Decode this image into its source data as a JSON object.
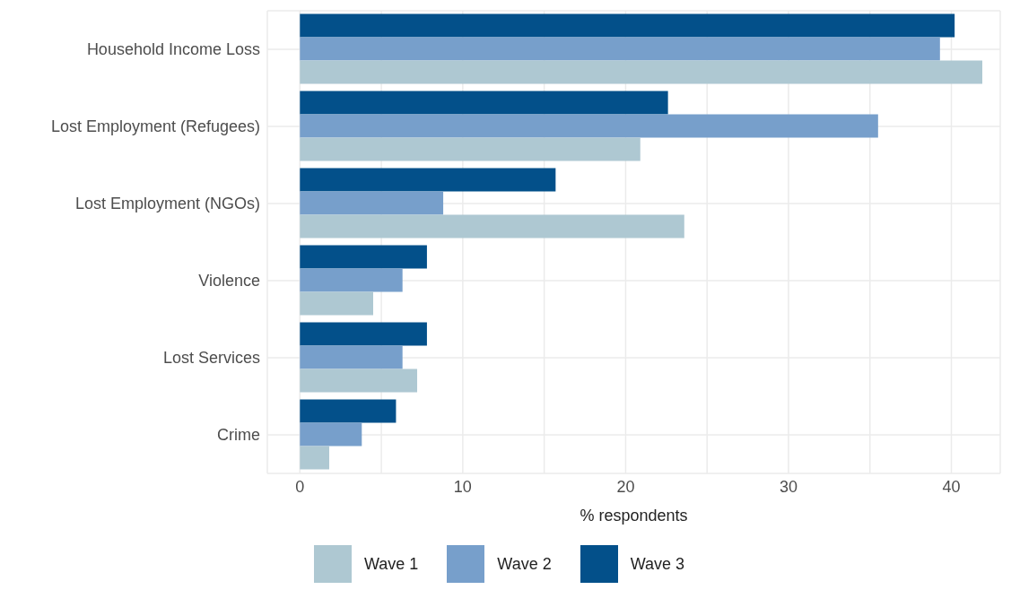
{
  "chart_data": {
    "type": "bar",
    "orientation": "horizontal",
    "xlabel": "% respondents",
    "categories": [
      "Household Income Loss",
      "Lost Employment (Refugees)",
      "Lost Employment (NGOs)",
      "Violence",
      "Lost Services",
      "Crime"
    ],
    "series": [
      {
        "name": "Wave 1",
        "color": "#aec8d2",
        "values": [
          41.9,
          20.9,
          23.6,
          4.5,
          7.2,
          1.8
        ]
      },
      {
        "name": "Wave 2",
        "color": "#779fcb",
        "values": [
          39.3,
          35.5,
          8.8,
          6.3,
          6.3,
          3.8
        ]
      },
      {
        "name": "Wave 3",
        "color": "#03508a",
        "values": [
          40.2,
          22.6,
          15.7,
          7.8,
          7.8,
          5.9
        ]
      }
    ],
    "xlim": [
      -2,
      43
    ],
    "xticks": [
      0,
      {
        "value": 5,
        "label": null
      },
      10,
      {
        "value": 15,
        "label": null
      },
      20,
      {
        "value": 25,
        "label": null
      },
      30,
      {
        "value": 35,
        "label": null
      },
      40
    ],
    "grid": true,
    "legend": "bottom"
  }
}
